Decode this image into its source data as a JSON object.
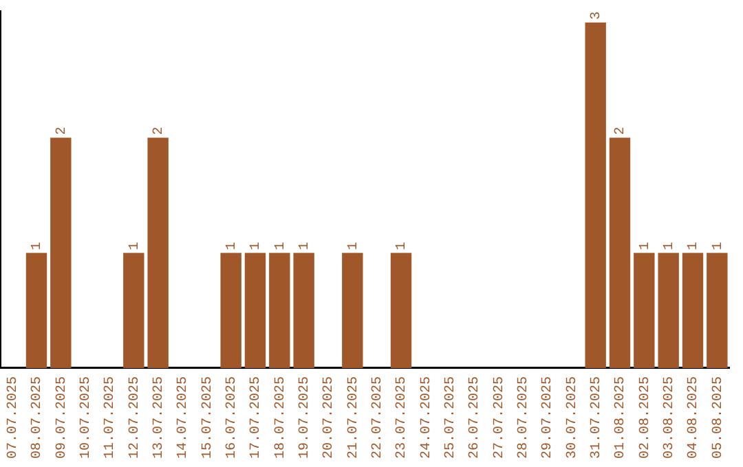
{
  "chart_data": {
    "type": "bar",
    "categories": [
      "07.07.2025",
      "08.07.2025",
      "09.07.2025",
      "10.07.2025",
      "11.07.2025",
      "12.07.2025",
      "13.07.2025",
      "14.07.2025",
      "15.07.2025",
      "16.07.2025",
      "17.07.2025",
      "18.07.2025",
      "19.07.2025",
      "20.07.2025",
      "21.07.2025",
      "22.07.2025",
      "23.07.2025",
      "24.07.2025",
      "25.07.2025",
      "26.07.2025",
      "27.07.2025",
      "28.07.2025",
      "29.07.2025",
      "30.07.2025",
      "31.07.2025",
      "01.08.2025",
      "02.08.2025",
      "03.08.2025",
      "04.08.2025",
      "05.08.2025"
    ],
    "values": [
      0,
      1,
      2,
      0,
      0,
      1,
      2,
      0,
      0,
      1,
      1,
      1,
      1,
      0,
      1,
      0,
      1,
      0,
      0,
      0,
      0,
      0,
      0,
      0,
      3,
      2,
      1,
      1,
      1,
      1
    ],
    "value_labels": [
      null,
      "1",
      "2",
      null,
      null,
      "1",
      "2",
      null,
      null,
      "1",
      "1",
      "1",
      "1",
      null,
      "1",
      null,
      "1",
      null,
      null,
      null,
      null,
      null,
      null,
      null,
      "3",
      "2",
      "1",
      "1",
      "1",
      "1"
    ],
    "color": "#a0582a",
    "ylim": [
      0,
      3.1
    ],
    "tick_labels": "x",
    "grid": false,
    "legend": false
  }
}
